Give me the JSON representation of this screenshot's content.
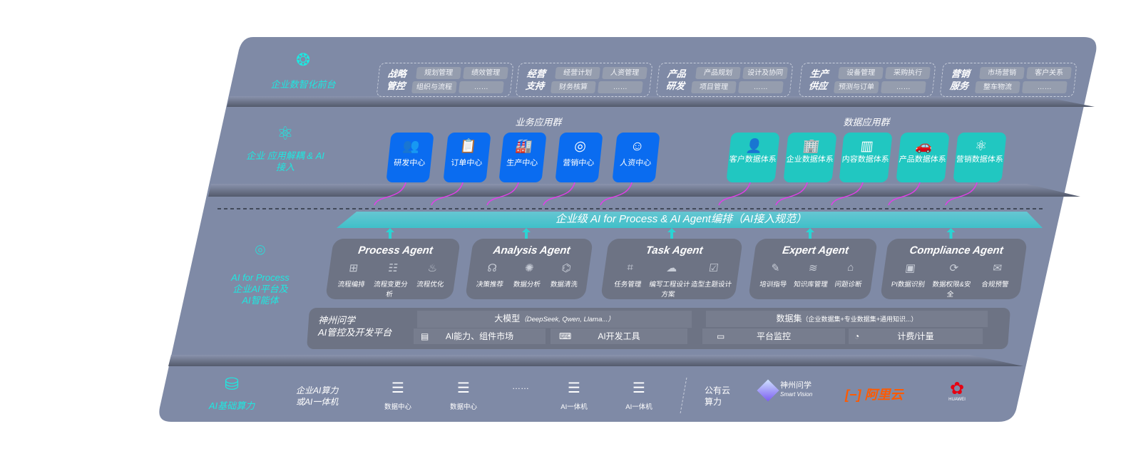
{
  "front": {
    "label": "企业数智化前台",
    "icon": "brain-icon",
    "groups": [
      {
        "title": "战略管控",
        "items": [
          "规划管理",
          "绩效管理",
          "组织与流程",
          "……"
        ]
      },
      {
        "title": "经营支持",
        "items": [
          "经营计划",
          "人资管理",
          "财务核算",
          "……"
        ]
      },
      {
        "title": "产品研发",
        "items": [
          "产品规划",
          "设计及协同",
          "项目管理",
          "……"
        ]
      },
      {
        "title": "生产供应",
        "items": [
          "设备管理",
          "采购执行",
          "预测与订单",
          "……"
        ]
      },
      {
        "title": "营销服务",
        "items": [
          "市场营销",
          "客户关系",
          "整车物流",
          "……"
        ]
      }
    ]
  },
  "apps": {
    "label": "企业 应用解耦 & AI 接入",
    "icon": "molecule-icon",
    "business_title": "业务应用群",
    "data_title": "数据应用群",
    "business": [
      {
        "label": "研发中心",
        "icon": "users-icon"
      },
      {
        "label": "订单中心",
        "icon": "clipboard-icon"
      },
      {
        "label": "生产中心",
        "icon": "factory-icon"
      },
      {
        "label": "营销中心",
        "icon": "target-icon"
      },
      {
        "label": "人资中心",
        "icon": "person-icon"
      }
    ],
    "data": [
      {
        "label": "客户数据体系",
        "icon": "user-icon"
      },
      {
        "label": "企业数据体系",
        "icon": "building-icon"
      },
      {
        "label": "内容数据体系",
        "icon": "books-icon"
      },
      {
        "label": "产品数据体系",
        "icon": "car-icon"
      },
      {
        "label": "营销数据体系",
        "icon": "atom-icon"
      }
    ]
  },
  "banner": "企业级 AI for Process & AI Agent编排（AI接入规范）",
  "ai": {
    "label": "AI for Process 企业AI平台及 AI智能体",
    "label_lines": [
      "AI for Process",
      "企业AI平台及",
      "AI智能体"
    ],
    "icon": "face-scan-icon",
    "agents": [
      {
        "title": "Process Agent",
        "items": [
          "流程编排",
          "流程变更分析",
          "流程优化"
        ]
      },
      {
        "title": "Analysis Agent",
        "items": [
          "决策推荐",
          "数据分析",
          "数据清洗"
        ]
      },
      {
        "title": "Task Agent",
        "items": [
          "任务管理",
          "编写工程设计方案",
          "造型主题设计"
        ]
      },
      {
        "title": "Expert Agent",
        "items": [
          "培训指导",
          "知识库管理",
          "问题诊断"
        ]
      },
      {
        "title": "Compliance Agent",
        "items": [
          "PI数据识别",
          "数据权限&安全",
          "合规预警"
        ]
      }
    ],
    "platform": {
      "title_lines": [
        "神州问学",
        "AI管控及开发平台"
      ],
      "llm": "大模型",
      "llm_note": "（DeepSeek, Qwen, Llama...）",
      "dataset": "数据集",
      "dataset_note": "（企业数据集+专业数据集+通用知识...）",
      "tools": [
        "AI能力、组件市场",
        "AI开发工具",
        "平台监控",
        "计费/计量"
      ]
    }
  },
  "compute": {
    "label": "AI基础算力",
    "icon": "database-icon",
    "enterprise_lines": [
      "企业AI算力",
      "或AI一体机"
    ],
    "nodes": [
      "数据中心",
      "数据中心",
      "AI一体机",
      "AI一体机"
    ],
    "ellipsis": "……",
    "public_lines": [
      "公有云",
      "算力"
    ],
    "vendors": {
      "szwx": "神州问学",
      "szwx_sub": "Smart Vision",
      "aliyun": "阿里云",
      "huawei": "HUAWEI"
    }
  },
  "colors": {
    "panel": "#7f8aa6",
    "cyan": "#1ee8e0",
    "blue": "#0a6cf0",
    "teal": "#21c7c1",
    "arrow": "#e040e8"
  }
}
